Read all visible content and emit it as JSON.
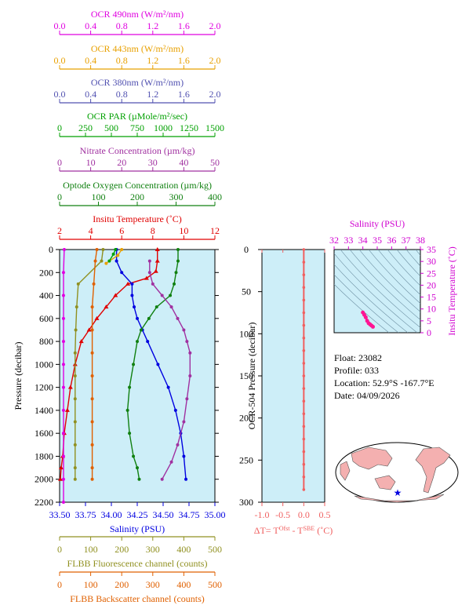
{
  "colors": {
    "ocr490": "#e000e0",
    "ocr443": "#e8a000",
    "ocr380": "#5050b0",
    "par": "#00a000",
    "nitrate": "#a030a0",
    "oxygen": "#108010",
    "temp": "#e00000",
    "salinity": "#0000e0",
    "fluor": "#909020",
    "backscatter": "#e06000",
    "panel_bg": "#cdeef8",
    "dt": "#f06060",
    "ts_axis": "#d000d0",
    "ts_points": "#ff1493"
  },
  "axes_top": [
    {
      "key": "ocr490",
      "title": "OCR 490nm (W/m²/nm)",
      "ticks": [
        "0.0",
        "0.4",
        "0.8",
        "1.2",
        "1.6",
        "2.0"
      ]
    },
    {
      "key": "ocr443",
      "title": "OCR 443nm (W/m²/nm)",
      "ticks": [
        "0.0",
        "0.4",
        "0.8",
        "1.2",
        "1.6",
        "2.0"
      ]
    },
    {
      "key": "ocr380",
      "title": "OCR 380nm (W/m²/nm)",
      "ticks": [
        "0.0",
        "0.4",
        "0.8",
        "1.2",
        "1.6",
        "2.0"
      ]
    },
    {
      "key": "par",
      "title": "OCR PAR (µMole/m²/sec)",
      "ticks": [
        "0",
        "250",
        "500",
        "750",
        "1000",
        "1250",
        "1500"
      ]
    },
    {
      "key": "nitrate",
      "title": "Nitrate Concentration (µm/kg)",
      "ticks": [
        "0",
        "10",
        "20",
        "30",
        "40",
        "50"
      ]
    },
    {
      "key": "oxygen",
      "title": "Optode Oxygen Concentration (µm/kg)",
      "ticks": [
        "0",
        "100",
        "200",
        "300",
        "400"
      ]
    },
    {
      "key": "temp",
      "title": "Insitu Temperature (˚C)",
      "ticks": [
        "2",
        "4",
        "6",
        "8",
        "10",
        "12"
      ]
    }
  ],
  "axes_bottom": [
    {
      "key": "salinity",
      "title": "Salinity (PSU)",
      "ticks": [
        "33.50",
        "33.75",
        "34.00",
        "34.25",
        "34.50",
        "34.75",
        "35.00"
      ]
    },
    {
      "key": "fluor",
      "title": "FLBB Fluorescence channel (counts)",
      "ticks": [
        "0",
        "100",
        "200",
        "300",
        "400",
        "500"
      ]
    },
    {
      "key": "backscatter",
      "title": "FLBB Backscatter channel (counts)",
      "ticks": [
        "0",
        "100",
        "200",
        "300",
        "400",
        "500"
      ]
    }
  ],
  "main_panel": {
    "ylabel": "Pressure (decibar)",
    "yticks": [
      "0",
      "200",
      "400",
      "600",
      "800",
      "1000",
      "1200",
      "1400",
      "1600",
      "1800",
      "2000",
      "2200"
    ]
  },
  "dt_panel": {
    "ylabel": "OCR-504 Pressure (decibar)",
    "yticks": [
      "0",
      "50",
      "100",
      "150",
      "200",
      "250",
      "300"
    ],
    "xticks": [
      "-1.0",
      "-0.5",
      "0.0",
      "0.5"
    ],
    "xlabel_main": "ΔT= T",
    "xlabel_sup1": "Ofst",
    "xlabel_mid": " - T",
    "xlabel_sup2": "SBE",
    "xlabel_end": " (˚C)"
  },
  "ts_panel": {
    "title": "Salinity (PSU)",
    "xticks": [
      "32",
      "33",
      "34",
      "35",
      "36",
      "37",
      "38"
    ],
    "yticks": [
      "0",
      "5",
      "10",
      "15",
      "20",
      "25",
      "30",
      "35"
    ],
    "ylabel": "Insitu Temperature (˚C)"
  },
  "info": {
    "float": "Float:  23082",
    "profile": "Profile:  033",
    "location": "Location:  52.9°S  -167.7°E",
    "date": "Date:  04/09/2026"
  },
  "chart_data": {
    "type": "line",
    "pressure_range": [
      0,
      2200
    ],
    "series": [
      {
        "name": "Insitu Temperature (˚C)",
        "key": "temp",
        "xlim": [
          2,
          12
        ],
        "marker": "triangle",
        "x": [
          8.3,
          8.3,
          8.2,
          7.6,
          6.4,
          5.6,
          5.0,
          4.4,
          3.9,
          3.4,
          3.0,
          2.7,
          2.5,
          2.3,
          2.2,
          2.1,
          2.05
        ],
        "y": [
          0,
          100,
          190,
          250,
          300,
          400,
          500,
          600,
          700,
          800,
          1000,
          1200,
          1400,
          1600,
          1800,
          1900,
          2000
        ]
      },
      {
        "name": "Salinity (PSU)",
        "key": "salinity",
        "xlim": [
          33.5,
          35.0
        ],
        "marker": "dot",
        "x": [
          34.05,
          34.05,
          34.1,
          34.2,
          34.2,
          34.22,
          34.25,
          34.3,
          34.35,
          34.45,
          34.55,
          34.62,
          34.67,
          34.7,
          34.72
        ],
        "y": [
          0,
          100,
          200,
          300,
          400,
          500,
          600,
          700,
          800,
          1000,
          1200,
          1400,
          1600,
          1800,
          2000
        ]
      },
      {
        "name": "Optode Oxygen Concentration (µm/kg)",
        "key": "oxygen",
        "xlim": [
          0,
          400
        ],
        "marker": "dot",
        "x": [
          305,
          305,
          300,
          295,
          285,
          250,
          230,
          210,
          200,
          190,
          180,
          175,
          180,
          190,
          200,
          205
        ],
        "y": [
          0,
          100,
          200,
          300,
          400,
          500,
          600,
          700,
          800,
          1000,
          1200,
          1400,
          1600,
          1800,
          1900,
          2000
        ]
      },
      {
        "name": "Nitrate Concentration (µm/kg)",
        "key": "nitrate",
        "xlim": [
          0,
          50
        ],
        "marker": "dot",
        "x": [
          29,
          29,
          30,
          33,
          36,
          38,
          40,
          41,
          42,
          42,
          41,
          40,
          38,
          36,
          33
        ],
        "y": [
          100,
          200,
          300,
          400,
          500,
          600,
          700,
          800,
          900,
          1100,
          1300,
          1500,
          1700,
          1850,
          2000
        ]
      },
      {
        "name": "FLBB Fluorescence channel (counts)",
        "key": "fluor",
        "xlim": [
          0,
          500
        ],
        "marker": "dot",
        "x": [
          140,
          135,
          60,
          55,
          52,
          50,
          50,
          50,
          50,
          50,
          50,
          50
        ],
        "y": [
          0,
          100,
          300,
          500,
          700,
          900,
          1100,
          1300,
          1500,
          1700,
          1900,
          2000
        ]
      },
      {
        "name": "FLBB Backscatter channel (counts)",
        "key": "backscatter",
        "xlim": [
          0,
          500
        ],
        "marker": "dot",
        "x": [
          120,
          115,
          110,
          105,
          105,
          105,
          105,
          105,
          105,
          105,
          105,
          105
        ],
        "y": [
          0,
          100,
          300,
          500,
          700,
          900,
          1100,
          1300,
          1500,
          1700,
          1900,
          2000
        ]
      },
      {
        "name": "OCR 490nm (W/m²/nm)",
        "key": "ocr490",
        "xlim": [
          0.0,
          2.0
        ],
        "marker": "dot",
        "x": [
          0.06,
          0.05,
          0.05,
          0.05,
          0.05,
          0.05,
          0.05,
          0.05,
          0.05,
          0.05,
          0.05,
          0.05
        ],
        "y": [
          0,
          200,
          400,
          600,
          800,
          1000,
          1200,
          1400,
          1600,
          1800,
          2000,
          2200
        ]
      },
      {
        "name": "OCR 443nm (W/m²/nm)",
        "key": "ocr443",
        "xlim": [
          0.0,
          2.0
        ],
        "marker": "dot",
        "x": [
          0.8,
          0.75,
          0.6
        ],
        "y": [
          0,
          50,
          120
        ]
      },
      {
        "name": "OCR PAR (µMole/m²/sec)",
        "key": "par",
        "xlim": [
          0,
          1500
        ],
        "marker": "dot",
        "x": [
          540,
          520,
          480
        ],
        "y": [
          0,
          40,
          100
        ]
      }
    ],
    "dt_series": {
      "x": [
        0.0,
        0.0,
        0.0,
        0.0,
        0.0,
        0.0,
        0.0,
        0.0,
        0.0,
        0.0,
        0.0,
        0.0,
        0.0,
        0.0,
        0.0,
        0.0,
        0.0,
        0.0,
        0.0,
        0.0
      ],
      "y": [
        0,
        15,
        30,
        45,
        60,
        75,
        90,
        105,
        120,
        135,
        150,
        165,
        180,
        195,
        210,
        225,
        240,
        255,
        270,
        285
      ]
    },
    "ts_points": {
      "x": [
        34.0,
        34.1,
        34.2,
        34.3,
        34.4,
        34.5,
        34.6,
        34.7
      ],
      "y": [
        8.5,
        7.5,
        6.5,
        5.0,
        4.0,
        3.5,
        3.0,
        2.5
      ]
    }
  }
}
